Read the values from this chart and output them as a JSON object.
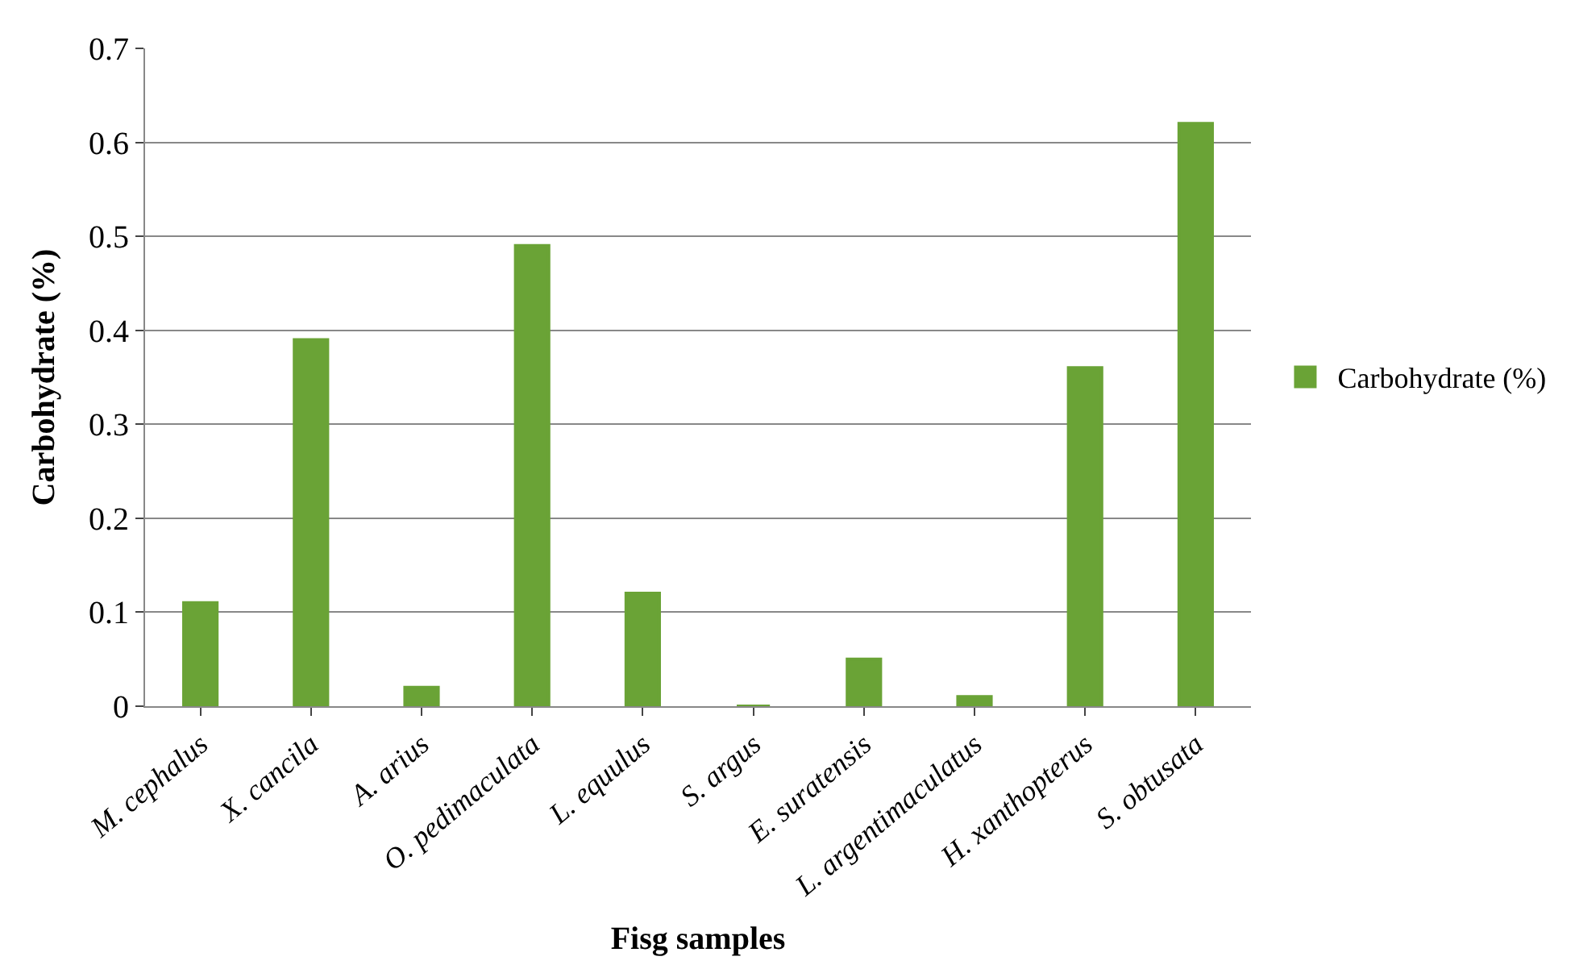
{
  "chart_data": {
    "type": "bar",
    "xlabel": "Fisg samples",
    "ylabel": "Carbohydrate (%)",
    "categories": [
      "M. cephalus",
      "X. cancila",
      "A. arius",
      "O. pedimaculata",
      "L. equulus",
      "S. argus",
      "E. suratensis",
      "L. argentimaculatus",
      "H. xanthopterus",
      "S. obtusata"
    ],
    "series": [
      {
        "name": "Carbohydrate (%)",
        "color": "#6aa336",
        "values": [
          0.11,
          0.39,
          0.02,
          0.49,
          0.12,
          0,
          0.05,
          0.01,
          0.36,
          0.62
        ]
      }
    ],
    "ylim": [
      0,
      0.7
    ],
    "yticks": [
      {
        "value": 0,
        "label": "0"
      },
      0.1,
      0.2,
      0.3,
      0.4,
      0.5,
      0.6,
      0.7
    ],
    "grid": "y",
    "legend": "right"
  }
}
